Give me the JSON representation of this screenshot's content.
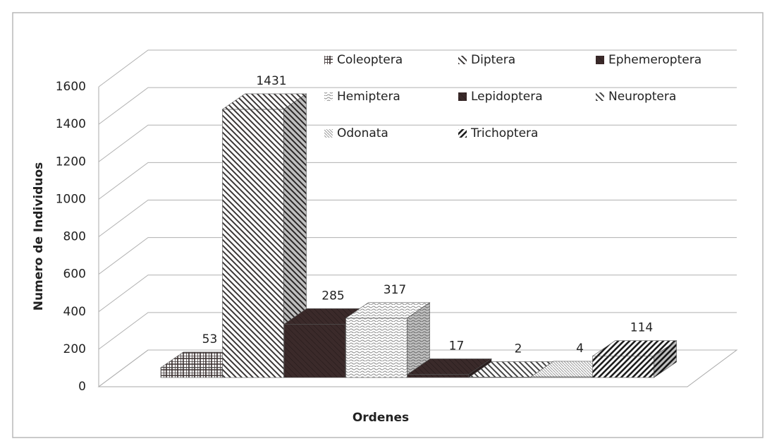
{
  "chart_data": {
    "type": "bar3d",
    "y_label": "Numero de Individuos",
    "x_label": "Ordenes",
    "categories": [
      null
    ],
    "series": [
      {
        "name": "Coleoptera",
        "color": "#3a3030",
        "values": [
          53
        ]
      },
      {
        "name": "Diptera",
        "color": "#3a3636",
        "values": [
          1431
        ]
      },
      {
        "name": "Ephemeroptera",
        "color": "#3b2a2a",
        "values": [
          285
        ]
      },
      {
        "name": "Hemiptera",
        "color": "#8a8a8a",
        "values": [
          317
        ]
      },
      {
        "name": "Lepidoptera",
        "color": "#3a2a2a",
        "values": [
          17
        ]
      },
      {
        "name": "Neuroptera",
        "color": "#444444",
        "values": [
          2
        ]
      },
      {
        "name": "Odonata",
        "color": "#9a9a9a",
        "values": [
          4
        ]
      },
      {
        "name": "Trichoptera",
        "color": "#1e1e1e",
        "values": [
          114
        ]
      }
    ],
    "ylim": [
      0,
      1600
    ],
    "yticks": [
      0,
      200,
      400,
      600,
      800,
      1000,
      1200,
      1400,
      1600
    ],
    "grid": true,
    "legend": "top"
  }
}
